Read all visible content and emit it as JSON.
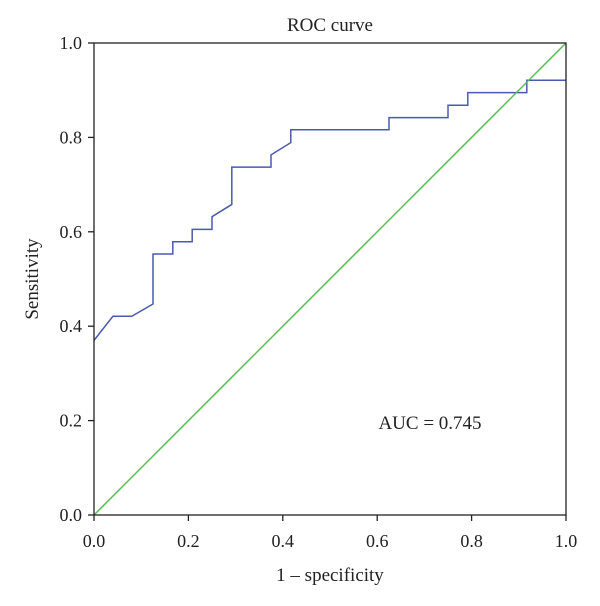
{
  "chart_data": {
    "type": "line",
    "title": "ROC curve",
    "xlabel": "1 – specificity",
    "ylabel": "Sensitivity",
    "xlim": [
      0,
      1
    ],
    "ylim": [
      0,
      1
    ],
    "grid": false,
    "x_ticks": [
      0.0,
      0.2,
      0.4,
      0.6,
      0.8,
      1.0
    ],
    "x_tick_labels": [
      "0.0",
      "0.2",
      "0.4",
      "0.6",
      "0.8",
      "1.0"
    ],
    "y_ticks": [
      0.0,
      0.2,
      0.4,
      0.6,
      0.8,
      1.0
    ],
    "y_tick_labels": [
      "0.0",
      "0.2",
      "0.4",
      "0.6",
      "0.8",
      "1.0"
    ],
    "annotation": "AUC = 0.745",
    "series": [
      {
        "color": "#4a5ab0",
        "x": [
          0.0,
          0.04,
          0.08,
          0.125,
          0.125,
          0.167,
          0.167,
          0.208,
          0.208,
          0.25,
          0.25,
          0.292,
          0.292,
          0.375,
          0.375,
          0.417,
          0.417,
          0.625,
          0.625,
          0.75,
          0.75,
          0.792,
          0.792,
          0.917,
          0.917,
          1.0
        ],
        "y": [
          0.37,
          0.421,
          0.421,
          0.447,
          0.553,
          0.553,
          0.579,
          0.579,
          0.605,
          0.605,
          0.632,
          0.658,
          0.737,
          0.737,
          0.763,
          0.789,
          0.816,
          0.816,
          0.842,
          0.842,
          0.868,
          0.868,
          0.895,
          0.895,
          0.921,
          0.921
        ]
      },
      {
        "color": "#55bb55",
        "x": [
          0.0,
          1.0
        ],
        "y": [
          0.0,
          1.0
        ]
      }
    ]
  }
}
